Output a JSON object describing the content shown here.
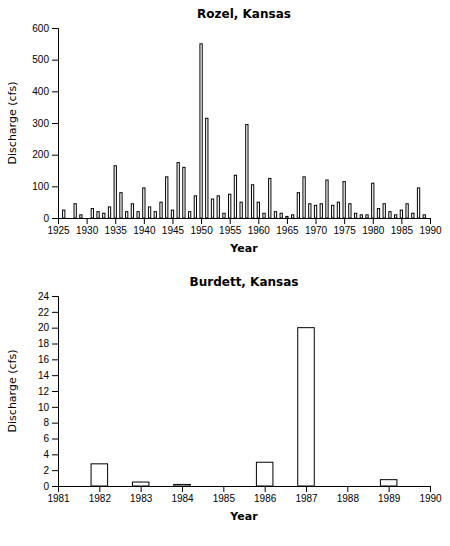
{
  "chart_data": [
    {
      "type": "bar",
      "title": "Rozel, Kansas",
      "xlabel": "Year",
      "ylabel": "Discharge (cfs)",
      "color": "#000000",
      "x": [
        1926,
        1928,
        1929,
        1931,
        1932,
        1933,
        1934,
        1935,
        1936,
        1937,
        1938,
        1939,
        1940,
        1941,
        1942,
        1943,
        1944,
        1945,
        1946,
        1947,
        1948,
        1949,
        1950,
        1951,
        1952,
        1953,
        1954,
        1955,
        1956,
        1957,
        1958,
        1959,
        1960,
        1961,
        1962,
        1963,
        1964,
        1965,
        1966,
        1967,
        1968,
        1969,
        1970,
        1971,
        1972,
        1973,
        1974,
        1975,
        1976,
        1977,
        1978,
        1979,
        1980,
        1981,
        1982,
        1983,
        1984,
        1985,
        1986,
        1987,
        1988,
        1989
      ],
      "values": [
        25,
        45,
        10,
        30,
        20,
        15,
        35,
        165,
        80,
        20,
        45,
        20,
        95,
        35,
        20,
        50,
        130,
        25,
        175,
        160,
        20,
        70,
        550,
        315,
        60,
        70,
        15,
        75,
        135,
        50,
        295,
        105,
        50,
        15,
        125,
        20,
        15,
        5,
        10,
        80,
        130,
        45,
        40,
        45,
        120,
        40,
        50,
        115,
        45,
        15,
        10,
        10,
        110,
        30,
        45,
        20,
        10,
        25,
        45,
        15,
        95,
        10
      ],
      "xlim": [
        1925,
        1990
      ],
      "ylim": [
        0,
        600
      ],
      "xticks": [
        1925,
        1930,
        1935,
        1940,
        1945,
        1950,
        1955,
        1960,
        1965,
        1970,
        1975,
        1980,
        1985,
        1990
      ],
      "yticks": [
        0,
        100,
        200,
        300,
        400,
        500,
        600
      ]
    },
    {
      "type": "bar",
      "title": "Burdett, Kansas",
      "xlabel": "Year",
      "ylabel": "Discharge (cfs)",
      "color": "#000000",
      "x": [
        1982,
        1983,
        1984,
        1986,
        1987,
        1989
      ],
      "values": [
        2.8,
        0.5,
        0.2,
        3.0,
        20.0,
        0.8
      ],
      "xlim": [
        1981,
        1990
      ],
      "ylim": [
        0,
        24
      ],
      "xticks": [
        1981,
        1982,
        1983,
        1984,
        1985,
        1986,
        1987,
        1988,
        1989,
        1990
      ],
      "yticks": [
        0,
        2,
        4,
        6,
        8,
        10,
        12,
        14,
        16,
        18,
        20,
        22,
        24
      ]
    }
  ]
}
